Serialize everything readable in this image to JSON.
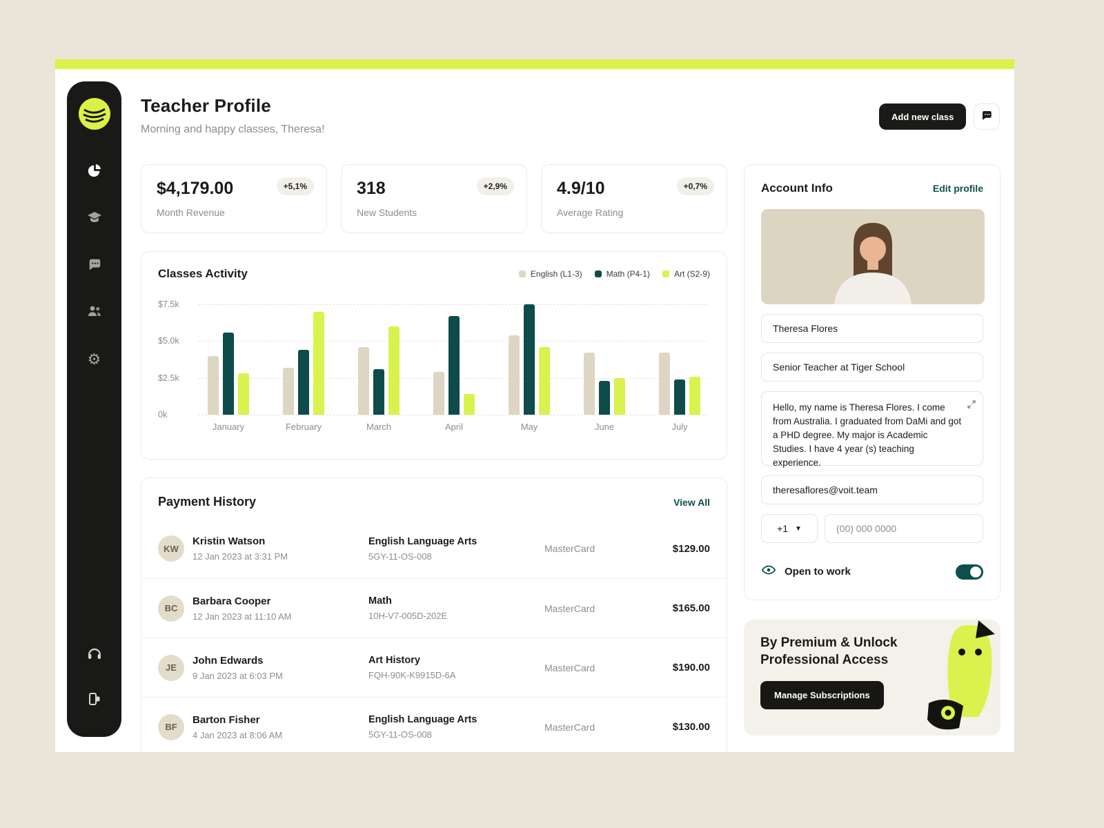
{
  "colors": {
    "accent": "#d9f245",
    "sidebar_bg": "#191917",
    "teal": "#0d4f4a",
    "page_bg": "#e9e6d9"
  },
  "sidebar": {
    "items": [
      {
        "name": "analytics",
        "icon": "pie-chart-icon"
      },
      {
        "name": "classes",
        "icon": "graduation-cap-icon"
      },
      {
        "name": "messages",
        "icon": "chat-icon"
      },
      {
        "name": "students",
        "icon": "people-icon"
      },
      {
        "name": "settings",
        "icon": "gear-icon"
      }
    ],
    "footer_items": [
      {
        "name": "support",
        "icon": "headphones-icon"
      },
      {
        "name": "logout",
        "icon": "logout-icon"
      }
    ]
  },
  "header": {
    "title": "Teacher Profile",
    "subtitle": "Morning and happy classes, Theresa!",
    "add_new_class": "Add new class"
  },
  "stats": [
    {
      "value": "$4,179.00",
      "badge": "+5,1%",
      "label": "Month Revenue"
    },
    {
      "value": "318",
      "badge": "+2,9%",
      "label": "New Students"
    },
    {
      "value": "4.9/10",
      "badge": "+0,7%",
      "label": "Average Rating"
    }
  ],
  "chart_data": {
    "type": "bar",
    "title": "Classes Activity",
    "categories": [
      "January",
      "February",
      "March",
      "April",
      "May",
      "June",
      "July"
    ],
    "series": [
      {
        "name": "English (L1-3)",
        "color": "#ddd6c2",
        "values": [
          4.0,
          3.2,
          4.6,
          2.9,
          5.4,
          4.2,
          4.2
        ]
      },
      {
        "name": "Math (P4-1)",
        "color": "#0d4c4a",
        "values": [
          5.6,
          4.4,
          3.1,
          6.7,
          7.5,
          2.3,
          2.4
        ]
      },
      {
        "name": "Art (S2-9)",
        "color": "#d9f24d",
        "values": [
          2.8,
          7.0,
          6.0,
          1.4,
          4.6,
          2.5,
          2.6
        ]
      }
    ],
    "ylabel_ticks": [
      "$7.5k",
      "$5.0k",
      "$2.5k",
      "0k"
    ],
    "ylim": [
      0,
      7.5
    ],
    "legend_position": "top-right",
    "grid": "dashed-horizontal"
  },
  "payments": {
    "title": "Payment History",
    "view_all": "View All",
    "rows": [
      {
        "name": "Kristin Watson",
        "date": "12 Jan 2023 at 3:31 PM",
        "course": "English Language Arts",
        "code": "5GY-11-OS-008",
        "method": "MasterCard",
        "amount": "$129.00"
      },
      {
        "name": "Barbara Cooper",
        "date": "12 Jan 2023 at 11:10 AM",
        "course": "Math",
        "code": "10H-V7-005D-202E",
        "method": "MasterCard",
        "amount": "$165.00"
      },
      {
        "name": "John Edwards",
        "date": "9 Jan 2023 at 6:03 PM",
        "course": "Art History",
        "code": "FQH-90K-K9915D-6A",
        "method": "MasterCard",
        "amount": "$190.00"
      },
      {
        "name": "Barton Fisher",
        "date": "4 Jan 2023 at 8:06 AM",
        "course": "English Language Arts",
        "code": "5GY-11-OS-008",
        "method": "MasterCard",
        "amount": "$130.00"
      }
    ]
  },
  "account": {
    "title": "Account Info",
    "edit_link": "Edit profile",
    "name": "Theresa Flores",
    "role": "Senior Teacher at Tiger School",
    "bio": "Hello, my name is Theresa Flores. I come from Australia. I graduated from DaMi and got a PHD degree. My major is Academic Studies. I have 4 year (s) teaching experience.",
    "email": "theresaflores@voit.team",
    "phone_code": "+1",
    "phone_placeholder": "(00) 000 0000",
    "open_to_work": "Open to work",
    "open_to_work_enabled": true
  },
  "premium": {
    "title": "By Premium & Unlock Professional Access",
    "button": "Manage Subscriptions"
  }
}
